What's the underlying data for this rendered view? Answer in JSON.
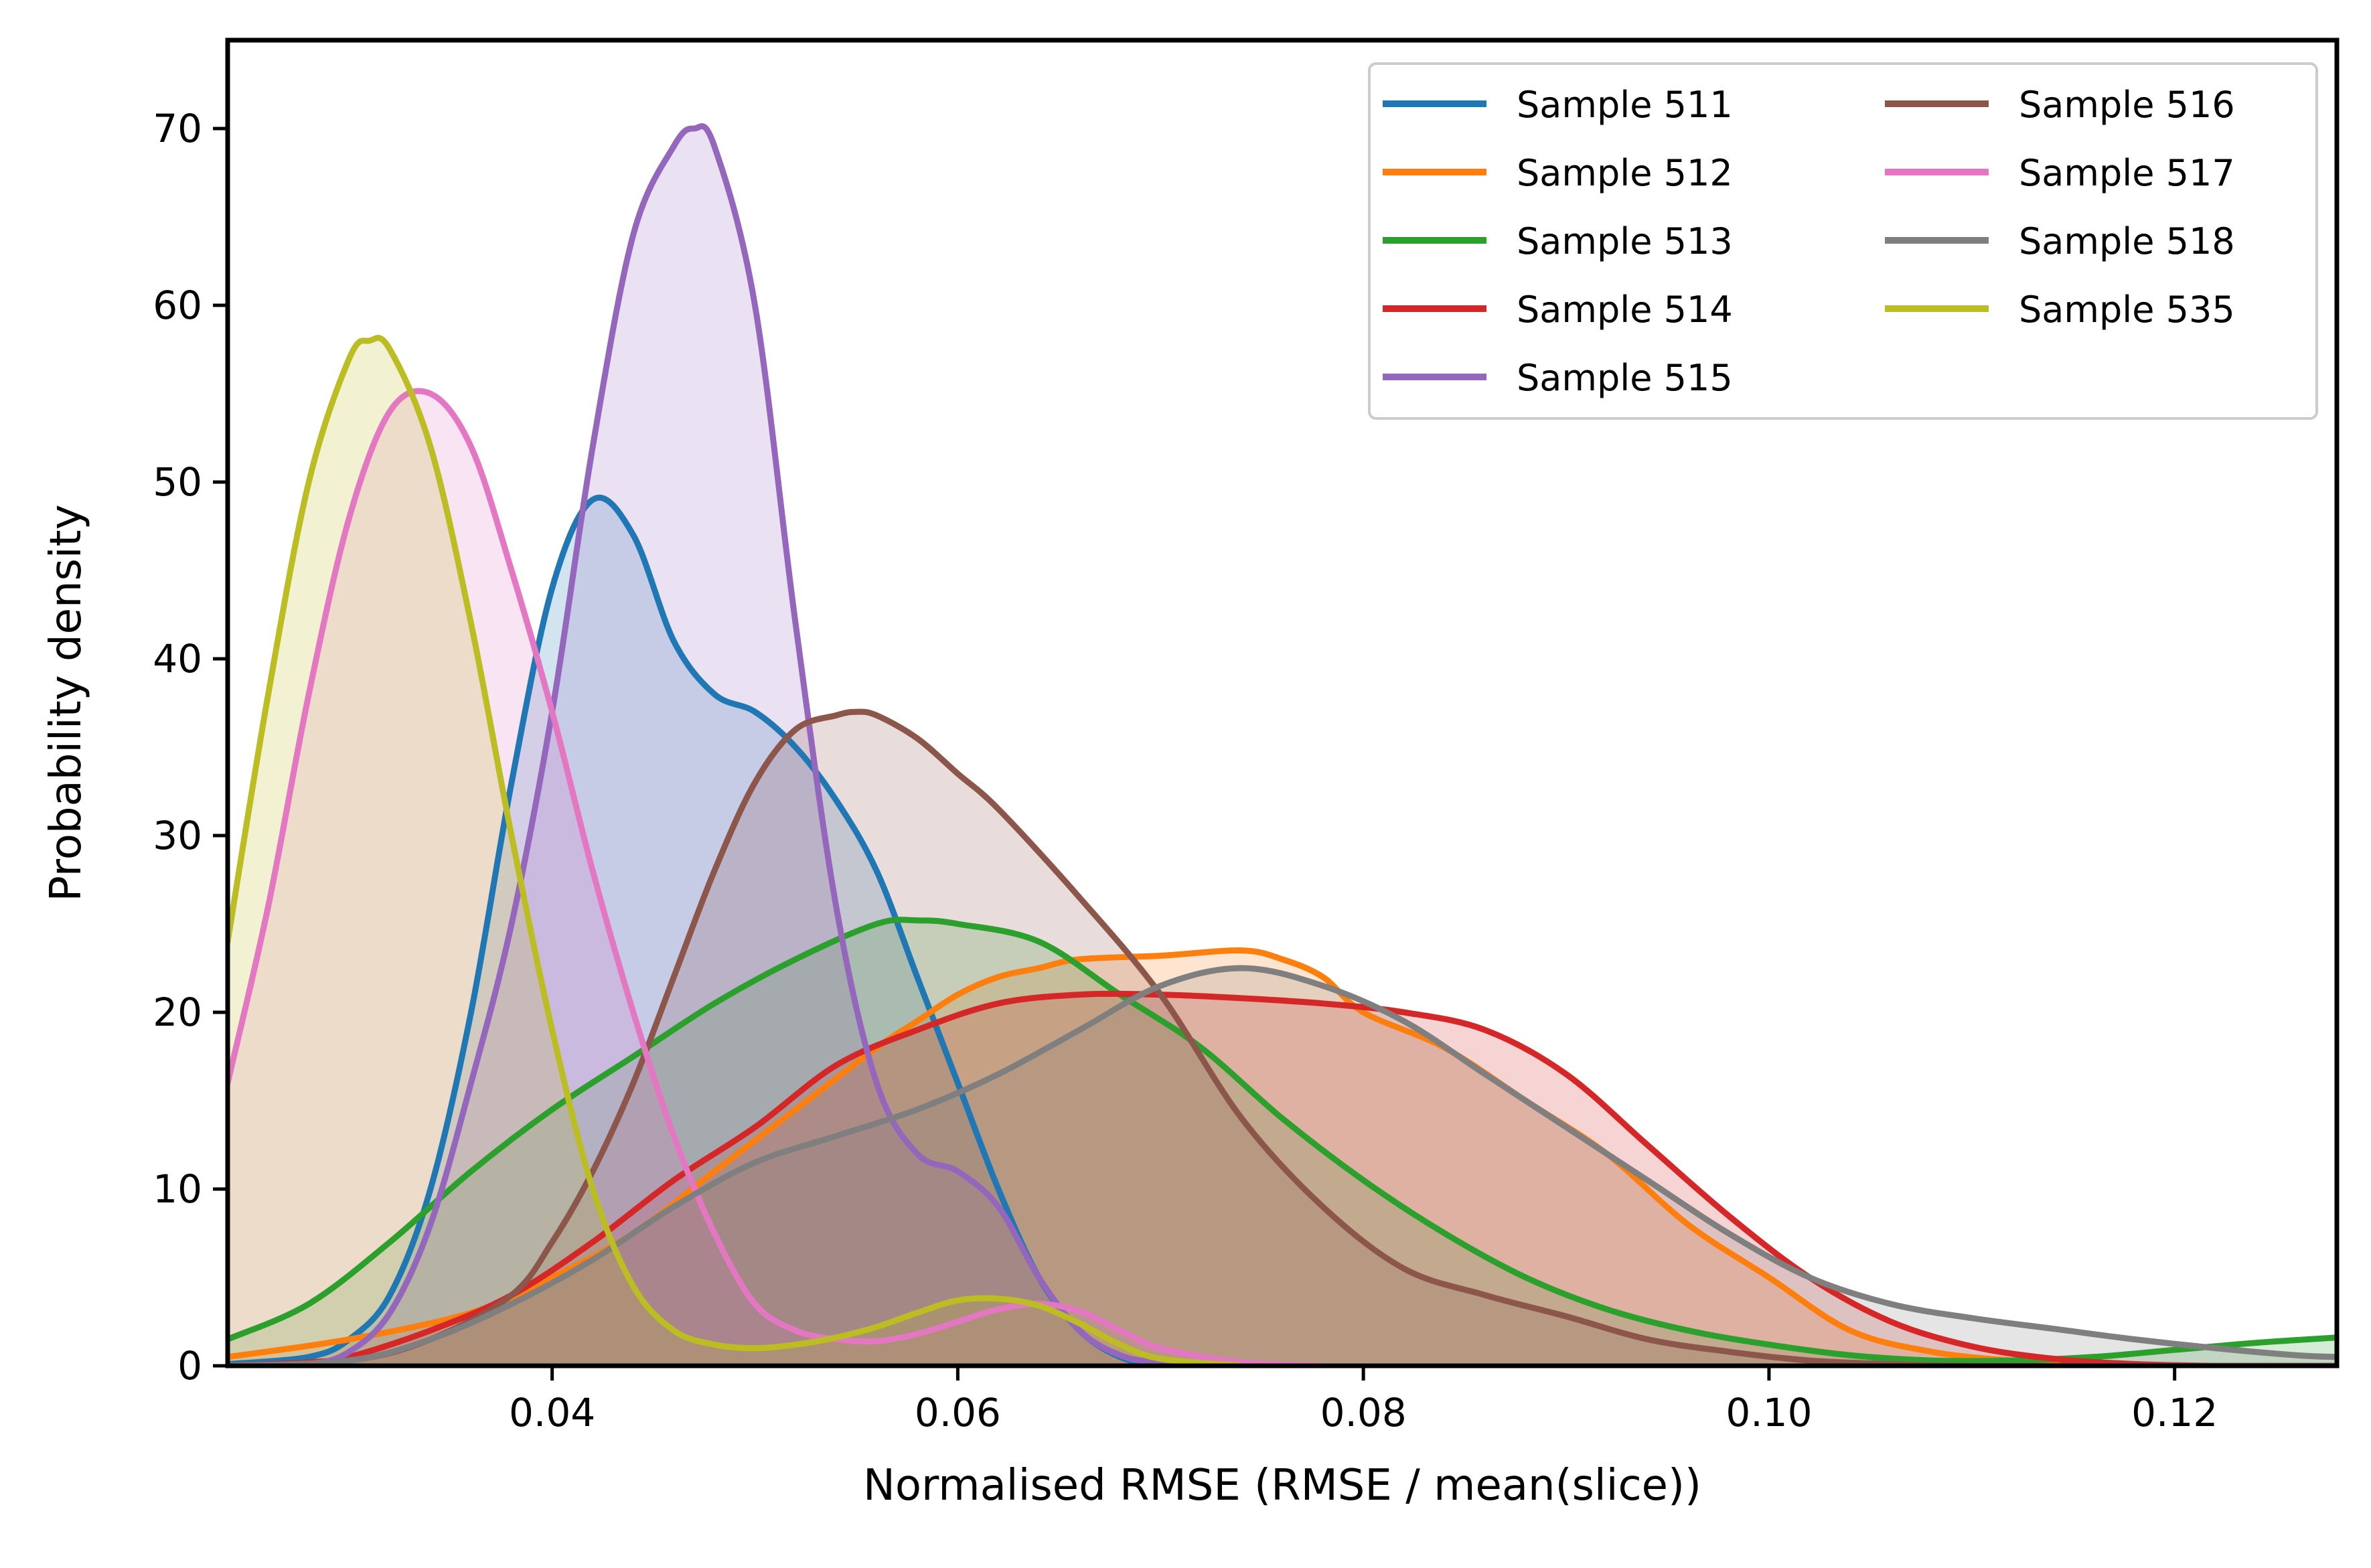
{
  "chart_data": {
    "type": "area",
    "title": "",
    "xlabel": "Normalised RMSE  (RMSE / mean(slice))",
    "ylabel": "Probability density",
    "xlim": [
      0.024,
      0.128
    ],
    "ylim": [
      0,
      75
    ],
    "xticks": [
      0.04,
      0.06,
      0.08,
      0.1,
      0.12
    ],
    "xtick_labels": [
      "0.04",
      "0.06",
      "0.08",
      "0.10",
      "0.12"
    ],
    "yticks": [
      0,
      10,
      20,
      30,
      40,
      50,
      60,
      70
    ],
    "ytick_labels": [
      "0",
      "10",
      "20",
      "30",
      "40",
      "50",
      "60",
      "70"
    ],
    "grid": false,
    "legend_position": "top-right",
    "legend_columns": 2,
    "series": [
      {
        "name": "Sample 511",
        "color": "#1f77b4",
        "x": [
          0.024,
          0.028,
          0.03,
          0.032,
          0.034,
          0.036,
          0.038,
          0.04,
          0.042,
          0.044,
          0.046,
          0.048,
          0.05,
          0.052,
          0.054,
          0.056,
          0.058,
          0.06,
          0.062,
          0.064,
          0.066,
          0.068,
          0.07,
          0.074
        ],
        "y": [
          0.1,
          0.5,
          1.5,
          4,
          10,
          20,
          33,
          44,
          49,
          47,
          41,
          38,
          37,
          35,
          32,
          28,
          22,
          16,
          10,
          5,
          2,
          0.5,
          0.1,
          0
        ]
      },
      {
        "name": "Sample 512",
        "color": "#ff7f0e",
        "x": [
          0.024,
          0.03,
          0.036,
          0.04,
          0.044,
          0.048,
          0.052,
          0.056,
          0.058,
          0.06,
          0.062,
          0.064,
          0.066,
          0.07,
          0.074,
          0.076,
          0.078,
          0.08,
          0.084,
          0.088,
          0.092,
          0.096,
          0.1,
          0.104,
          0.108,
          0.112,
          0.116,
          0.12,
          0.124,
          0.128
        ],
        "y": [
          0.5,
          1.5,
          3,
          5,
          7.5,
          11,
          14.5,
          18,
          19.5,
          21,
          22,
          22.5,
          23,
          23.2,
          23.5,
          23,
          22,
          20,
          18,
          15,
          12,
          8,
          5,
          2,
          0.8,
          0.3,
          0.1,
          0,
          0,
          0
        ]
      },
      {
        "name": "Sample 513",
        "color": "#2ca02c",
        "x": [
          0.024,
          0.028,
          0.032,
          0.036,
          0.04,
          0.044,
          0.048,
          0.052,
          0.056,
          0.058,
          0.06,
          0.064,
          0.068,
          0.072,
          0.076,
          0.08,
          0.084,
          0.088,
          0.092,
          0.096,
          0.1,
          0.104,
          0.108,
          0.112,
          0.116,
          0.12,
          0.124,
          0.128
        ],
        "y": [
          1.5,
          3.5,
          7,
          11,
          14.5,
          17.5,
          20.5,
          23,
          25,
          25.2,
          25,
          24,
          21,
          18,
          14,
          10.5,
          7.5,
          5,
          3.2,
          2,
          1.2,
          0.6,
          0.3,
          0.3,
          0.5,
          0.9,
          1.3,
          1.6
        ]
      },
      {
        "name": "Sample 514",
        "color": "#d62728",
        "x": [
          0.024,
          0.028,
          0.03,
          0.034,
          0.038,
          0.042,
          0.046,
          0.05,
          0.054,
          0.058,
          0.062,
          0.066,
          0.07,
          0.074,
          0.078,
          0.082,
          0.086,
          0.09,
          0.094,
          0.098,
          0.102,
          0.106,
          0.11,
          0.114,
          0.118,
          0.122,
          0.128
        ],
        "y": [
          0,
          0.2,
          0.5,
          2,
          4,
          7,
          10.5,
          13.5,
          17,
          19,
          20.5,
          21,
          21,
          20.8,
          20.5,
          20,
          19,
          16.5,
          12.5,
          8.5,
          5,
          2.5,
          1.1,
          0.4,
          0.1,
          0,
          0
        ]
      },
      {
        "name": "Sample 515",
        "color": "#9467bd",
        "x": [
          0.024,
          0.028,
          0.03,
          0.032,
          0.034,
          0.036,
          0.038,
          0.04,
          0.042,
          0.044,
          0.046,
          0.047,
          0.048,
          0.05,
          0.052,
          0.054,
          0.056,
          0.058,
          0.06,
          0.062,
          0.064,
          0.066,
          0.068,
          0.07,
          0.074
        ],
        "y": [
          0,
          0.1,
          0.8,
          3,
          8,
          16,
          25,
          37,
          52,
          64,
          69,
          70,
          69,
          60,
          42,
          26,
          16,
          12,
          11,
          9,
          5,
          2,
          0.6,
          0.2,
          0
        ]
      },
      {
        "name": "Sample 516",
        "color": "#8c564b",
        "x": [
          0.024,
          0.03,
          0.034,
          0.038,
          0.04,
          0.042,
          0.044,
          0.046,
          0.048,
          0.05,
          0.052,
          0.054,
          0.055,
          0.056,
          0.058,
          0.06,
          0.062,
          0.066,
          0.07,
          0.074,
          0.078,
          0.082,
          0.086,
          0.09,
          0.094,
          0.098,
          0.102,
          0.106,
          0.11,
          0.12,
          0.128
        ],
        "y": [
          0,
          0.3,
          1.5,
          4,
          7,
          11,
          16,
          22,
          28,
          33,
          36,
          36.8,
          37,
          36.8,
          35.5,
          33.5,
          31.5,
          26.5,
          21,
          14,
          9,
          5.5,
          4,
          2.8,
          1.5,
          0.8,
          0.3,
          0.1,
          0,
          0,
          0
        ]
      },
      {
        "name": "Sample 517",
        "color": "#e377c2",
        "x": [
          0.024,
          0.026,
          0.028,
          0.03,
          0.032,
          0.034,
          0.036,
          0.038,
          0.04,
          0.042,
          0.044,
          0.046,
          0.048,
          0.05,
          0.052,
          0.054,
          0.056,
          0.058,
          0.06,
          0.062,
          0.064,
          0.066,
          0.068,
          0.07,
          0.074,
          0.078
        ],
        "y": [
          16,
          26,
          38,
          48,
          54,
          55,
          52,
          45,
          37,
          28,
          20,
          13,
          7.5,
          3.5,
          2,
          1.5,
          1.4,
          1.8,
          2.5,
          3.2,
          3.5,
          3.1,
          2,
          1,
          0.2,
          0
        ]
      },
      {
        "name": "Sample 518",
        "color": "#7f7f7f",
        "x": [
          0.024,
          0.03,
          0.034,
          0.038,
          0.042,
          0.046,
          0.05,
          0.054,
          0.058,
          0.062,
          0.066,
          0.07,
          0.074,
          0.078,
          0.082,
          0.086,
          0.09,
          0.094,
          0.098,
          0.102,
          0.106,
          0.11,
          0.114,
          0.118,
          0.122,
          0.126,
          0.128
        ],
        "y": [
          0,
          0.3,
          1.5,
          3.5,
          6,
          9,
          11.5,
          13,
          14.5,
          16.5,
          19,
          21.5,
          22.5,
          21.5,
          19.5,
          16.5,
          13.5,
          10.5,
          7.5,
          5,
          3.5,
          2.7,
          2.1,
          1.5,
          1,
          0.6,
          0.5
        ]
      },
      {
        "name": "Sample 535",
        "color": "#bcbd22",
        "x": [
          0.024,
          0.026,
          0.028,
          0.03,
          0.031,
          0.032,
          0.034,
          0.036,
          0.038,
          0.04,
          0.042,
          0.044,
          0.046,
          0.048,
          0.05,
          0.052,
          0.054,
          0.056,
          0.058,
          0.06,
          0.062,
          0.064,
          0.066,
          0.068,
          0.07,
          0.074
        ],
        "y": [
          24,
          38,
          50,
          57,
          58,
          57.5,
          52,
          42,
          30,
          19,
          10,
          4.5,
          2,
          1.2,
          1,
          1.2,
          1.6,
          2.2,
          3,
          3.7,
          3.8,
          3.4,
          2.4,
          1.2,
          0.4,
          0
        ]
      }
    ]
  }
}
